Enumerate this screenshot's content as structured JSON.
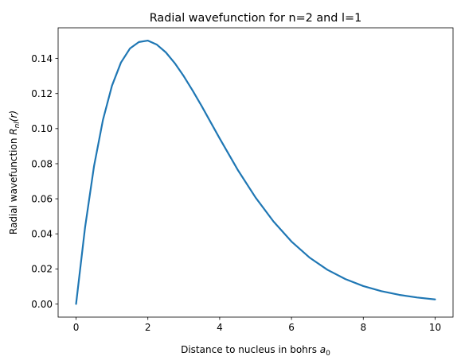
{
  "chart_data": {
    "type": "line",
    "title": "Radial wavefunction for n=2 and l=1",
    "xlabel": {
      "text": "Distance to nucleus in bohrs ",
      "var": "a",
      "sub": "0"
    },
    "ylabel": {
      "text": "Radial wavefunction ",
      "var": "R",
      "sub": "nl",
      "tail": "(r)"
    },
    "xlim": [
      -0.5,
      10.5
    ],
    "ylim": [
      -0.0075,
      0.1575
    ],
    "xticks": [
      0,
      2,
      4,
      6,
      8,
      10
    ],
    "xtick_labels": [
      "0",
      "2",
      "4",
      "6",
      "8",
      "10"
    ],
    "yticks": [
      0.0,
      0.02,
      0.04,
      0.06,
      0.08,
      0.1,
      0.12,
      0.14
    ],
    "ytick_labels": [
      "0.00",
      "0.02",
      "0.04",
      "0.06",
      "0.08",
      "0.10",
      "0.12",
      "0.14"
    ],
    "grid": false,
    "series": [
      {
        "color": "#1f77b4",
        "x": [
          0,
          0.25,
          0.5,
          0.75,
          1.0,
          1.25,
          1.5,
          1.75,
          2.0,
          2.25,
          2.5,
          2.75,
          3.0,
          3.25,
          3.5,
          3.75,
          4.0,
          4.5,
          5.0,
          5.5,
          6.0,
          6.5,
          7.0,
          7.5,
          8.0,
          8.5,
          9.0,
          9.5,
          10.0
        ],
        "y": [
          0.0,
          0.0436,
          0.0786,
          0.1051,
          0.1245,
          0.1377,
          0.1457,
          0.1494,
          0.1502,
          0.1479,
          0.1435,
          0.1373,
          0.1299,
          0.1216,
          0.1128,
          0.1036,
          0.0944,
          0.0766,
          0.0607,
          0.047,
          0.0356,
          0.0265,
          0.0195,
          0.0142,
          0.0102,
          0.0073,
          0.0052,
          0.0037,
          0.0026
        ]
      }
    ]
  }
}
